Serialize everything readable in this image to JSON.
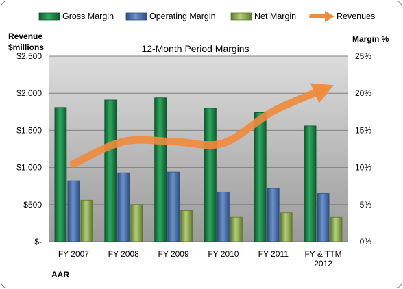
{
  "chart_data": {
    "type": "bar",
    "title": "12-Month Period Margins",
    "company": "AAR",
    "left_axis_title": [
      "Revenue",
      "$millions"
    ],
    "right_axis_title": "Margin %",
    "categories": [
      [
        "FY 2007"
      ],
      [
        "FY 2008"
      ],
      [
        "FY 2009"
      ],
      [
        "FY 2010"
      ],
      [
        "FY 2011"
      ],
      [
        "FY & TTM",
        "2012"
      ]
    ],
    "y_left_ticks": [
      "$-",
      "$500",
      "$1,000",
      "$1,500",
      "$2,000",
      "$2,500"
    ],
    "y_left_range": [
      0,
      2500
    ],
    "y_right_ticks": [
      "0%",
      "5%",
      "10%",
      "15%",
      "20%",
      "25%"
    ],
    "y_right_range": [
      0,
      25
    ],
    "grid": true,
    "legend_position": "top",
    "series": [
      {
        "name": "Gross Margin",
        "axis": "right",
        "unit": "%",
        "values": [
          18.1,
          19.1,
          19.4,
          18.0,
          17.4,
          15.6
        ],
        "color": "#1e8a4c"
      },
      {
        "name": "Operating Margin",
        "axis": "right",
        "unit": "%",
        "values": [
          8.2,
          9.3,
          9.4,
          6.7,
          7.2,
          6.5
        ],
        "color": "#4f79b8"
      },
      {
        "name": "Net Margin",
        "axis": "right",
        "unit": "%",
        "values": [
          5.6,
          5.0,
          4.2,
          3.3,
          3.9,
          3.3
        ],
        "color": "#93b35c"
      }
    ],
    "line_series": {
      "name": "Revenues",
      "axis": "left",
      "unit": "$millions",
      "values": [
        1050,
        1350,
        1350,
        1330,
        1760,
        2050
      ],
      "color": "#f08a3c"
    }
  }
}
